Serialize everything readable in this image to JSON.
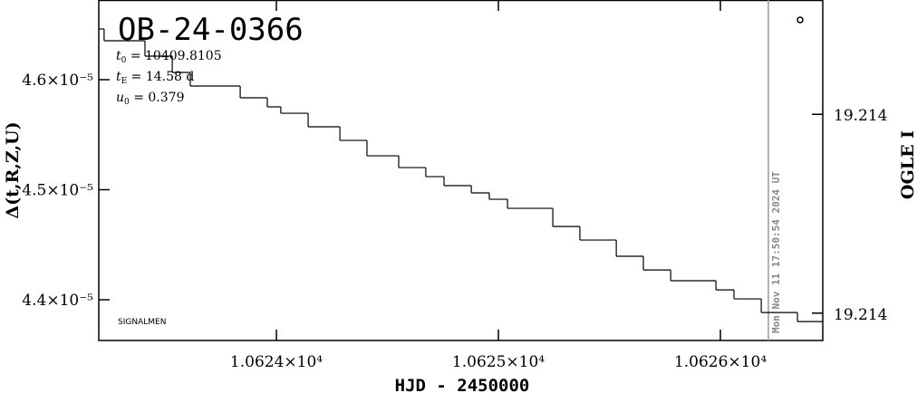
{
  "chart_data": {
    "type": "step",
    "title": "OB-24-0366",
    "params": [
      {
        "var": "t",
        "sub": "0",
        "rest": " = 10409.8105"
      },
      {
        "var": "t",
        "sub": "E",
        "rest": " = 14.58 d"
      },
      {
        "var": "u",
        "sub": "0",
        "rest": " = 0.379"
      }
    ],
    "credit": "SIGNALMEN",
    "timestamp": "Mon Nov 11 17:50:54 2024 UT",
    "timestamp_x": 10626.216,
    "x_label": "HJD - 2450000",
    "y_label": "Δ(t,R,Z,U)",
    "y2_label": "OGLE I",
    "xlim": [
      10623.2,
      10626.461
    ],
    "xticks": [
      {
        "value": 10624,
        "label": "1.0624×10⁴"
      },
      {
        "value": 10625,
        "label": "1.0625×10⁴"
      },
      {
        "value": 10626,
        "label": "1.0626×10⁴"
      }
    ],
    "ylim": [
      4.363e-05,
      4.6724e-05
    ],
    "yticks": [
      {
        "value": 4.4e-05,
        "label": "4.4×10⁻⁵"
      },
      {
        "value": 4.5e-05,
        "label": "4.5×10⁻⁵"
      },
      {
        "value": 4.6e-05,
        "label": "4.6×10⁻⁵"
      }
    ],
    "y2lim": [
      19.21451,
      19.21314
    ],
    "y2ticks": [
      {
        "value": 19.2136,
        "label": "19.214"
      },
      {
        "value": 19.2144,
        "label": "19.214"
      }
    ],
    "series": [
      {
        "color": "#000000",
        "x": [
          10623.2,
          10623.224,
          10623.408,
          10623.531,
          10623.612,
          10623.837,
          10623.959,
          10624.02,
          10624.143,
          10624.286,
          10624.408,
          10624.551,
          10624.673,
          10624.755,
          10624.878,
          10624.959,
          10625.041,
          10625.245,
          10625.367,
          10625.531,
          10625.653,
          10625.776,
          10625.98,
          10626.061,
          10626.184,
          10626.347,
          10626.461
        ],
        "values": [
          4.6461e-05,
          4.6354e-05,
          4.6214e-05,
          4.6066e-05,
          4.5942e-05,
          4.5835e-05,
          4.5753e-05,
          4.5695e-05,
          4.5572e-05,
          4.5448e-05,
          4.5308e-05,
          4.5201e-05,
          4.5119e-05,
          4.5037e-05,
          4.4971e-05,
          4.4913e-05,
          4.4831e-05,
          4.4666e-05,
          4.4543e-05,
          4.4395e-05,
          4.4271e-05,
          4.4173e-05,
          4.409e-05,
          4.4008e-05,
          4.3884e-05,
          4.3802e-05,
          4.3802e-05
        ]
      },
      {
        "color": "#000000",
        "axis": "y2",
        "marker": "circle",
        "x": [
          10626.359
        ],
        "values": [
          19.21322
        ]
      }
    ]
  }
}
